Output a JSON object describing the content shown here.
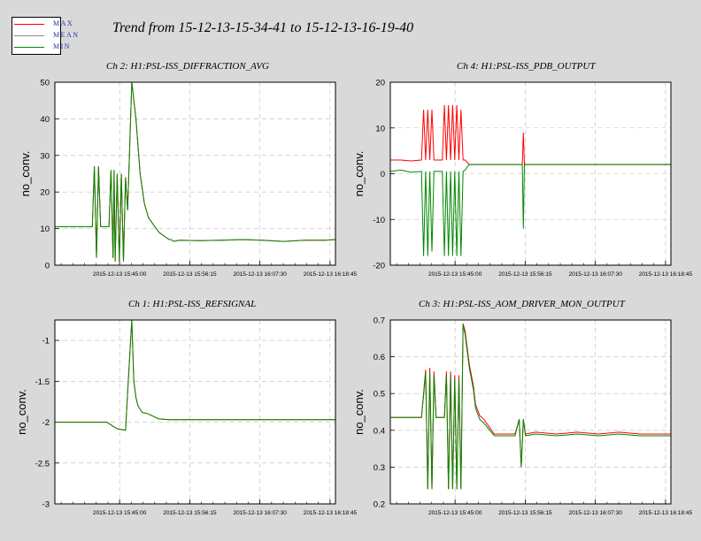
{
  "main_title": "Trend from 15-12-13-15-34-41 to 15-12-13-16-19-40",
  "legend": [
    {
      "label": "MAX",
      "color": "#ff0000"
    },
    {
      "label": "MEAN",
      "color": "#8a8a8a"
    },
    {
      "label": "MIN",
      "color": "#008800"
    }
  ],
  "colors": {
    "max": "#ff0000",
    "min": "#008800",
    "grid": "#bbbbbb",
    "plot_bg": "#ffffff",
    "page_bg": "#d9d9d9"
  },
  "chart_data": [
    {
      "type": "line",
      "title": "Ch 2: H1:PSL-ISS_DIFFRACTION_AVG",
      "ylabel": "no_conv.",
      "ylim": [
        0,
        50
      ],
      "yticks": [
        0,
        10,
        20,
        30,
        40,
        50
      ],
      "ytick_labels": [
        "0",
        "10",
        "20",
        "30",
        "40",
        "50"
      ],
      "xlim": [
        0,
        2700
      ],
      "xticks": [
        623,
        1298,
        1973,
        2648
      ],
      "xtick_labels": [
        "2015-12-13 15:45:00",
        "2015-12-13 15:56:15",
        "2015-12-13 16:07:30",
        "2015-12-13 16:18:45"
      ],
      "grid": true,
      "series": [
        {
          "name": "MAX",
          "color": "#ff0000",
          "x": [
            0,
            360,
            380,
            400,
            420,
            440,
            460,
            480,
            500,
            520,
            540,
            560,
            570,
            580,
            600,
            620,
            640,
            660,
            680,
            700,
            740,
            780,
            820,
            860,
            900,
            1000,
            1100,
            1120,
            1140,
            1200,
            1400,
            1600,
            1800,
            2000,
            2200,
            2400,
            2600,
            2700
          ],
          "y": [
            10.5,
            10.5,
            27,
            2,
            27,
            10.5,
            10.5,
            10.5,
            10.5,
            10.5,
            26,
            2,
            26,
            1,
            25,
            1,
            25,
            1,
            24,
            15,
            50,
            40,
            25,
            17,
            13,
            9,
            7,
            7,
            6.5,
            6.8,
            6.7,
            6.8,
            7,
            6.8,
            6.5,
            6.8,
            6.8,
            7
          ]
        },
        {
          "name": "MIN",
          "color": "#008800",
          "x": [
            0,
            360,
            380,
            400,
            420,
            440,
            460,
            480,
            500,
            520,
            540,
            560,
            570,
            580,
            600,
            620,
            640,
            660,
            680,
            700,
            740,
            780,
            820,
            860,
            900,
            1000,
            1100,
            1120,
            1140,
            1200,
            1400,
            1600,
            1800,
            2000,
            2200,
            2400,
            2600,
            2700
          ],
          "y": [
            10.5,
            10.5,
            27,
            2,
            27,
            10.5,
            10.5,
            10.5,
            10.5,
            10.5,
            26,
            2,
            26,
            1,
            25,
            1,
            25,
            1,
            24,
            15,
            50,
            40,
            25,
            17,
            13,
            9,
            7,
            7,
            6.5,
            6.8,
            6.7,
            6.8,
            7,
            6.8,
            6.5,
            6.8,
            6.8,
            7
          ]
        }
      ]
    },
    {
      "type": "line",
      "title": "Ch 4: H1:PSL-ISS_PDB_OUTPUT",
      "ylabel": "no_conv.",
      "ylim": [
        -20,
        20
      ],
      "yticks": [
        -20,
        -10,
        0,
        10,
        20
      ],
      "ytick_labels": [
        "-20",
        "-10",
        "0",
        "10",
        "20"
      ],
      "xlim": [
        0,
        2700
      ],
      "xticks": [
        623,
        1298,
        1973,
        2648
      ],
      "xtick_labels": [
        "2015-12-13 15:45:00",
        "2015-12-13 15:56:15",
        "2015-12-13 16:07:30",
        "2015-12-13 16:18:45"
      ],
      "grid": true,
      "series": [
        {
          "name": "MAX",
          "color": "#ff0000",
          "x": [
            0,
            100,
            200,
            300,
            320,
            340,
            360,
            380,
            400,
            420,
            440,
            460,
            480,
            500,
            520,
            540,
            560,
            580,
            600,
            620,
            640,
            660,
            680,
            700,
            720,
            740,
            760,
            800,
            1000,
            1200,
            1270,
            1280,
            1290,
            1300,
            1400,
            1600,
            1800,
            2000,
            2200,
            2400,
            2700
          ],
          "y": [
            3,
            3,
            2.8,
            3,
            14,
            3,
            14,
            3,
            14,
            3,
            3,
            3,
            3,
            3,
            15,
            3,
            15,
            3,
            15,
            3,
            15,
            3,
            14,
            3,
            3,
            2.5,
            2,
            2,
            2,
            2,
            2,
            9,
            2,
            2,
            2,
            2,
            2,
            2,
            2,
            2,
            2
          ]
        },
        {
          "name": "MIN",
          "color": "#008800",
          "x": [
            0,
            100,
            200,
            300,
            320,
            340,
            360,
            380,
            400,
            420,
            440,
            460,
            480,
            500,
            520,
            540,
            560,
            580,
            600,
            620,
            640,
            660,
            680,
            700,
            720,
            740,
            760,
            800,
            1000,
            1200,
            1270,
            1280,
            1290,
            1300,
            1400,
            1600,
            1800,
            2000,
            2200,
            2400,
            2700
          ],
          "y": [
            0.5,
            0.8,
            0.3,
            0.5,
            -18,
            0.5,
            -18,
            0.5,
            -17,
            0.5,
            0.5,
            0.5,
            0.5,
            0.5,
            -18,
            0.5,
            -18,
            0.5,
            -18,
            0.5,
            -18,
            0.5,
            -18,
            0.5,
            0.8,
            1.5,
            2,
            2,
            2,
            2,
            2,
            -12,
            2,
            2,
            2,
            2,
            2,
            2,
            2,
            2,
            2
          ]
        }
      ]
    },
    {
      "type": "line",
      "title": "Ch 1: H1:PSL-ISS_REFSIGNAL",
      "ylabel": "no_conv.",
      "ylim": [
        -3,
        -0.75
      ],
      "yticks": [
        -3,
        -2.5,
        -2,
        -1.5,
        -1
      ],
      "ytick_labels": [
        "-3",
        "-2.5",
        "-2",
        "-1.5",
        "-1"
      ],
      "xlim": [
        0,
        2700
      ],
      "xticks": [
        623,
        1298,
        1973,
        2648
      ],
      "xtick_labels": [
        "2015-12-13 15:45:00",
        "2015-12-13 15:56:15",
        "2015-12-13 16:07:30",
        "2015-12-13 16:18:45"
      ],
      "grid": true,
      "series": [
        {
          "name": "MAX",
          "color": "#ff0000",
          "x": [
            0,
            500,
            560,
            600,
            680,
            720,
            740,
            760,
            780,
            800,
            840,
            900,
            1000,
            1100,
            1200,
            1400,
            1600,
            1800,
            2000,
            2200,
            2400,
            2700
          ],
          "y": [
            -2,
            -2,
            -2.05,
            -2.08,
            -2.1,
            -1.2,
            -0.75,
            -1.5,
            -1.7,
            -1.8,
            -1.88,
            -1.9,
            -1.96,
            -1.97,
            -1.97,
            -1.97,
            -1.97,
            -1.97,
            -1.97,
            -1.97,
            -1.97,
            -1.97
          ]
        },
        {
          "name": "MIN",
          "color": "#008800",
          "x": [
            0,
            500,
            560,
            600,
            680,
            720,
            740,
            760,
            780,
            800,
            840,
            900,
            1000,
            1100,
            1200,
            1400,
            1600,
            1800,
            2000,
            2200,
            2400,
            2700
          ],
          "y": [
            -2,
            -2,
            -2.05,
            -2.08,
            -2.1,
            -1.2,
            -0.75,
            -1.5,
            -1.7,
            -1.8,
            -1.88,
            -1.9,
            -1.96,
            -1.97,
            -1.97,
            -1.97,
            -1.97,
            -1.97,
            -1.97,
            -1.97,
            -1.97,
            -1.97
          ]
        }
      ]
    },
    {
      "type": "line",
      "title": "Ch 3: H1:PSL-ISS_AOM_DRIVER_MON_OUTPUT",
      "ylabel": "no_conv.",
      "ylim": [
        0.2,
        0.7
      ],
      "yticks": [
        0.2,
        0.3,
        0.4,
        0.5,
        0.6,
        0.7
      ],
      "ytick_labels": [
        "0.2",
        "0.3",
        "0.4",
        "0.5",
        "0.6",
        "0.7"
      ],
      "xlim": [
        0,
        2700
      ],
      "xticks": [
        623,
        1298,
        1973,
        2648
      ],
      "xtick_labels": [
        "2015-12-13 15:45:00",
        "2015-12-13 15:56:15",
        "2015-12-13 16:07:30",
        "2015-12-13 16:18:45"
      ],
      "grid": true,
      "series": [
        {
          "name": "MAX",
          "color": "#ff0000",
          "x": [
            0,
            300,
            340,
            360,
            380,
            400,
            420,
            440,
            480,
            520,
            540,
            560,
            580,
            600,
            620,
            640,
            660,
            680,
            700,
            720,
            760,
            800,
            820,
            860,
            900,
            1000,
            1200,
            1240,
            1260,
            1280,
            1300,
            1400,
            1600,
            1800,
            2000,
            2200,
            2400,
            2700
          ],
          "y": [
            0.435,
            0.435,
            0.565,
            0.24,
            0.57,
            0.24,
            0.56,
            0.435,
            0.435,
            0.435,
            0.56,
            0.24,
            0.56,
            0.24,
            0.55,
            0.24,
            0.55,
            0.24,
            0.69,
            0.67,
            0.58,
            0.52,
            0.47,
            0.44,
            0.43,
            0.39,
            0.39,
            0.43,
            0.3,
            0.43,
            0.39,
            0.395,
            0.39,
            0.395,
            0.39,
            0.395,
            0.39,
            0.39
          ]
        },
        {
          "name": "MIN",
          "color": "#008800",
          "x": [
            0,
            300,
            340,
            360,
            380,
            400,
            420,
            440,
            480,
            520,
            540,
            560,
            580,
            600,
            620,
            640,
            660,
            680,
            700,
            720,
            760,
            800,
            820,
            860,
            900,
            1000,
            1200,
            1240,
            1260,
            1280,
            1300,
            1400,
            1600,
            1800,
            2000,
            2200,
            2400,
            2700
          ],
          "y": [
            0.435,
            0.435,
            0.555,
            0.24,
            0.56,
            0.24,
            0.55,
            0.435,
            0.435,
            0.435,
            0.55,
            0.24,
            0.55,
            0.24,
            0.54,
            0.24,
            0.54,
            0.24,
            0.69,
            0.66,
            0.57,
            0.51,
            0.46,
            0.43,
            0.42,
            0.385,
            0.385,
            0.43,
            0.3,
            0.43,
            0.385,
            0.39,
            0.385,
            0.39,
            0.385,
            0.39,
            0.385,
            0.385
          ]
        }
      ]
    }
  ]
}
